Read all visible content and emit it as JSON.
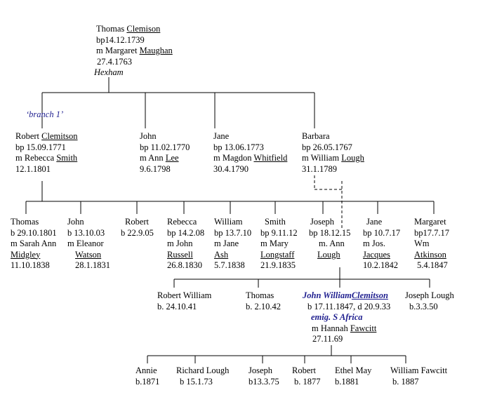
{
  "root": {
    "name": "Thomas ",
    "surname": "Clemison",
    "bapt": "bp14.12.1739",
    "spouse_prefix": "m Margaret ",
    "spouse_surname": "Maughan",
    "marriage_date": "27.4.1763",
    "place": "Hexham"
  },
  "branch_label": "‘branch 1’",
  "gen2": {
    "robert": {
      "name": "Robert ",
      "surname": "Clemitson",
      "bapt": "bp 15.09.1771",
      "spouse_prefix": "m Rebecca ",
      "spouse_surname": "Smith",
      "marriage_date": "12.1.1801"
    },
    "john": {
      "name": "John",
      "bapt": "bp 11.02.1770",
      "spouse_prefix": "m Ann ",
      "spouse_surname": "Lee",
      "marriage_date": "9.6.1798"
    },
    "jane": {
      "name": "Jane",
      "bapt": "bp 13.06.1773",
      "spouse_prefix": "m Magdon ",
      "spouse_surname": "Whitfield",
      "marriage_date": "30.4.1790"
    },
    "barbara": {
      "name": "Barbara",
      "bapt": "bp 26.05.1767",
      "spouse_prefix": "m William ",
      "spouse_surname": "Lough",
      "marriage_date": "31.1.1789"
    }
  },
  "gen3": {
    "thomas": {
      "l1": "Thomas",
      "l2": "b 29.10.1801",
      "l3": "m Sarah Ann",
      "l4": "Midgley",
      "l5": "11.10.1838"
    },
    "john": {
      "l1": "John",
      "l2": "b 13.10.03",
      "l3": "m Eleanor",
      "l4": "Watson",
      "l5": "28.1.1831"
    },
    "robert": {
      "l1": "Robert",
      "l2": "b 22.9.05"
    },
    "rebecca": {
      "l1": "Rebecca",
      "l2": "bp 14.2.08",
      "l3": "m John",
      "l4": "Russell",
      "l5": "26.8.1830"
    },
    "william": {
      "l1": "William",
      "l2": "bp 13.7.10",
      "l3": "m Jane",
      "l4": "Ash",
      "l5": "5.7.1838"
    },
    "smith": {
      "l1": "Smith",
      "l2": "bp 9.11.12",
      "l3": "m Mary",
      "l4": "Longstaff",
      "l5": "21.9.1835"
    },
    "joseph": {
      "l1": "Joseph",
      "l2": "bp 18.12.15",
      "l3": "m.  Ann",
      "l4": "Lough"
    },
    "jane": {
      "l1": "Jane",
      "l2": "bp 10.7.17",
      "l3": "m Jos.",
      "l4": "Jacques",
      "l5": "10.2.1842"
    },
    "margaret": {
      "l1": "Margaret",
      "l2": "bp17.7.17",
      "l3": "Wm",
      "l4": "Atkinson",
      "l5": "5.4.1847"
    }
  },
  "gen4": {
    "robert_william": {
      "l1": "Robert William",
      "l2": "b. 24.10.41"
    },
    "thomas": {
      "l1": "Thomas",
      "l2": "b. 2.10.42"
    },
    "john_william": {
      "name": "John William",
      "surname": "Clemitson",
      "birth": "b 17.11.1847, d 20.9.33",
      "note": "emig. S Africa",
      "spouse_prefix": "m Hannah ",
      "spouse_surname": "Fawcitt",
      "marriage_date": "27.11.69"
    },
    "joseph_lough": {
      "l1": "Joseph Lough",
      "l2": "b.3.3.50"
    }
  },
  "gen5": {
    "annie": {
      "l1": "Annie",
      "l2": "b.1871"
    },
    "richard_lough": {
      "l1": "Richard Lough",
      "l2": "b 15.1.73"
    },
    "joseph": {
      "l1": "Joseph",
      "l2": "b13.3.75"
    },
    "robert": {
      "l1": "Robert",
      "l2": "b. 1877"
    },
    "ethel_may": {
      "l1": "Ethel May",
      "l2": "b.1881"
    },
    "william_fawcitt": {
      "l1": "William Fawcitt",
      "l2": "b. 1887"
    }
  }
}
